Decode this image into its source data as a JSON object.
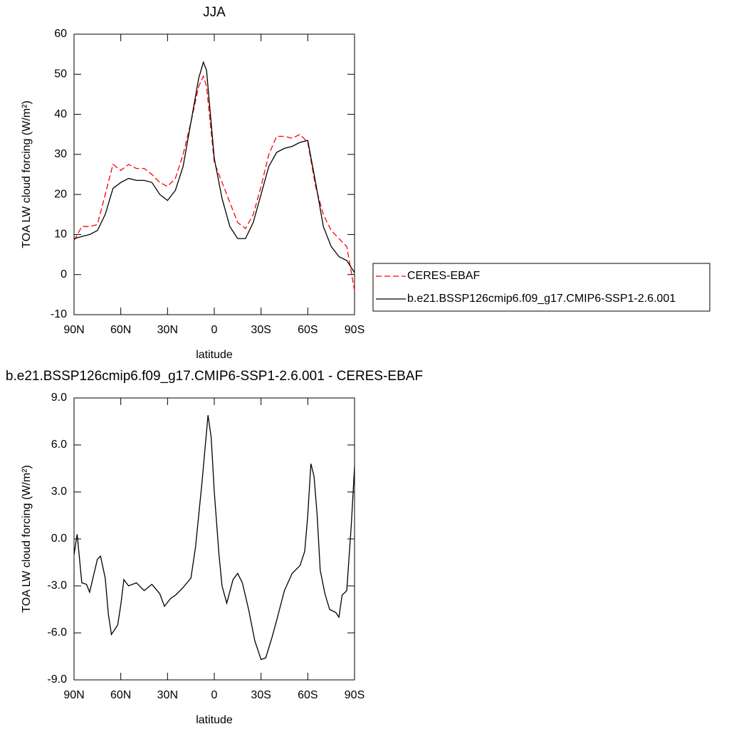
{
  "chart_data": [
    {
      "type": "line",
      "title": "JJA",
      "xlabel": "latitude",
      "ylabel": "TOA LW cloud forcing (W/m²)",
      "x": [
        90,
        85,
        80,
        75,
        70,
        65,
        60,
        55,
        50,
        45,
        40,
        35,
        30,
        25,
        20,
        15,
        10,
        7,
        5,
        0,
        -5,
        -10,
        -15,
        -20,
        -25,
        -30,
        -35,
        -40,
        -45,
        -50,
        -55,
        -60,
        -65,
        -70,
        -75,
        -80,
        -85,
        -90
      ],
      "series": [
        {
          "name": "CERES-EBAF",
          "color": "#ff0000",
          "line_style": "dashed",
          "values": [
            8.5,
            12,
            12,
            12.5,
            20,
            27.5,
            26,
            27.5,
            26.5,
            26.5,
            25,
            23,
            22,
            24,
            30,
            38,
            47,
            49.5,
            47,
            28,
            23,
            18,
            13,
            11.5,
            15,
            22,
            30,
            34.5,
            34.5,
            34,
            35,
            33,
            22,
            15,
            11,
            9,
            7,
            -4
          ]
        },
        {
          "name": "b.e21.BSSP126cmip6.f09_g17.CMIP6-SSP1-2.6.001",
          "color": "#000000",
          "line_style": "solid",
          "values": [
            9,
            9.5,
            10,
            11,
            15,
            21.5,
            23,
            24,
            23.5,
            23.5,
            23,
            20,
            18.5,
            21,
            27,
            38,
            49,
            53,
            51,
            29,
            19,
            12,
            9,
            9,
            13,
            20,
            27,
            30.5,
            31.5,
            32,
            33,
            33.5,
            23,
            12,
            7,
            4.5,
            3.5,
            0.5
          ]
        }
      ],
      "xlim": [
        90,
        -90
      ],
      "xticks": [
        {
          "value": 90,
          "label": "90N"
        },
        {
          "value": 60,
          "label": "60N"
        },
        {
          "value": 30,
          "label": "30N"
        },
        0,
        {
          "value": -30,
          "label": "30S"
        },
        {
          "value": -60,
          "label": "60S"
        },
        {
          "value": -90,
          "label": "90S"
        }
      ],
      "ylim": [
        -10,
        60
      ],
      "yticks": [
        -10,
        0,
        10,
        20,
        30,
        40,
        50,
        60
      ],
      "legend": "right"
    },
    {
      "type": "line",
      "title": "b.e21.BSSP126cmip6.f09_g17.CMIP6-SSP1-2.6.001 - CERES-EBAF",
      "xlabel": "latitude",
      "ylabel": "TOA LW cloud forcing (W/m²)",
      "x": [
        90,
        88,
        85,
        82,
        80,
        75,
        73,
        70,
        68,
        66,
        62,
        60,
        58,
        55,
        50,
        45,
        40,
        35,
        32,
        28,
        25,
        20,
        15,
        12,
        8,
        4,
        2,
        0,
        -3,
        -5,
        -8,
        -12,
        -15,
        -18,
        -22,
        -26,
        -30,
        -33,
        -37,
        -40,
        -45,
        -50,
        -55,
        -58,
        -60,
        -62,
        -64,
        -66,
        -68,
        -71,
        -74,
        -78,
        -80,
        -82,
        -85,
        -88,
        -90
      ],
      "values": [
        -1,
        0.3,
        -2.8,
        -2.9,
        -3.4,
        -1.3,
        -1.1,
        -2.5,
        -4.8,
        -6.1,
        -5.5,
        -4.2,
        -2.6,
        -3,
        -2.8,
        -3.3,
        -2.9,
        -3.5,
        -4.3,
        -3.8,
        -3.6,
        -3.1,
        -2.5,
        -0.5,
        3.5,
        7.9,
        6.5,
        3,
        -1,
        -3,
        -4.1,
        -2.6,
        -2.2,
        -2.8,
        -4.5,
        -6.5,
        -7.7,
        -7.6,
        -6.3,
        -5.2,
        -3.3,
        -2.2,
        -1.7,
        -0.8,
        1.5,
        4.8,
        4,
        1.5,
        -2,
        -3.5,
        -4.5,
        -4.7,
        -5,
        -3.6,
        -3.3,
        1,
        4.6
      ],
      "color": "#000000",
      "xlim": [
        90,
        -90
      ],
      "xticks": [
        {
          "value": 90,
          "label": "90N"
        },
        {
          "value": 60,
          "label": "60N"
        },
        {
          "value": 30,
          "label": "30N"
        },
        0,
        {
          "value": -30,
          "label": "30S"
        },
        {
          "value": -60,
          "label": "60S"
        },
        {
          "value": -90,
          "label": "90S"
        }
      ],
      "ylim": [
        -9,
        9
      ],
      "yticks": [
        {
          "value": -9,
          "label": "-9.0"
        },
        {
          "value": -6,
          "label": "-6.0"
        },
        {
          "value": -3,
          "label": "-3.0"
        },
        {
          "value": 0,
          "label": "0.0"
        },
        {
          "value": 3,
          "label": "3.0"
        },
        {
          "value": 6,
          "label": "6.0"
        },
        {
          "value": 9,
          "label": "9.0"
        }
      ]
    }
  ]
}
